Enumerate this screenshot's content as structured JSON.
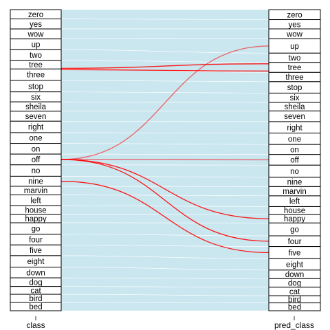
{
  "chart_data": {
    "type": "alluvial",
    "axes": [
      "class",
      "pred_class"
    ],
    "strata": {
      "class": [
        "zero",
        "yes",
        "wow",
        "up",
        "two",
        "tree",
        "three",
        "stop",
        "six",
        "sheila",
        "seven",
        "right",
        "one",
        "on",
        "off",
        "no",
        "nine",
        "marvin",
        "left",
        "house",
        "happy",
        "go",
        "four",
        "five",
        "eight",
        "down",
        "dog",
        "cat",
        "bird",
        "bed"
      ],
      "pred_class": [
        "zero",
        "yes",
        "wow",
        "up",
        "two",
        "tree",
        "three",
        "stop",
        "six",
        "sheila",
        "seven",
        "right",
        "one",
        "on",
        "off",
        "no",
        "nine",
        "marvin",
        "left",
        "house",
        "happy",
        "go",
        "four",
        "five",
        "eight",
        "down",
        "dog",
        "cat",
        "bird",
        "bed"
      ]
    },
    "flows_highlighted": [
      {
        "from": "tree",
        "to": "tree"
      },
      {
        "from": "tree",
        "to": "three"
      },
      {
        "from": "off",
        "to": "up"
      },
      {
        "from": "off",
        "to": "off"
      },
      {
        "from": "off",
        "to": "four"
      },
      {
        "from": "off",
        "to": "happy"
      },
      {
        "from": "nine",
        "to": "five"
      }
    ],
    "colors": {
      "correct_flow": "#add8e6",
      "error_flow": "#ff0000",
      "stratum_fill": "#ffffff",
      "stratum_border": "#000000"
    }
  }
}
